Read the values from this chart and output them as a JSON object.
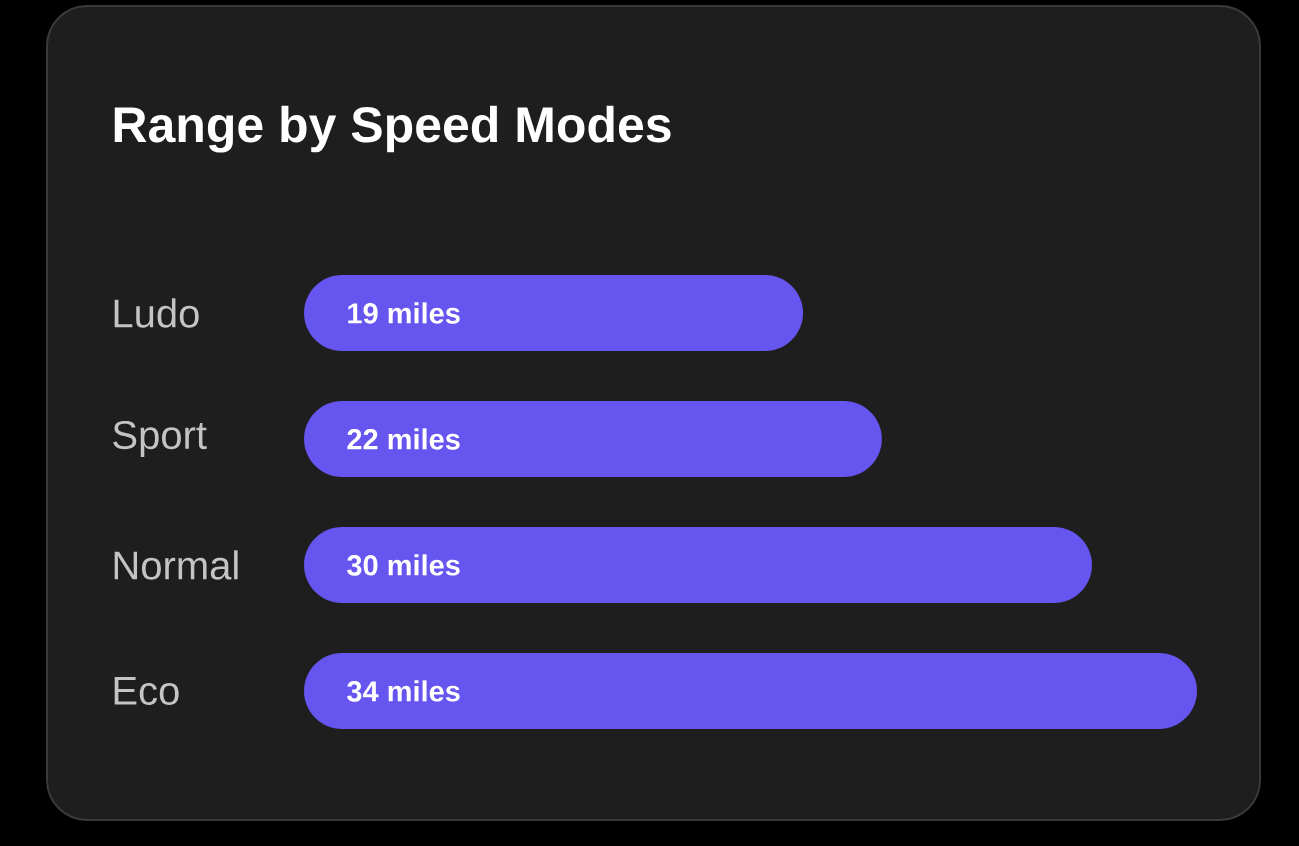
{
  "chart_data": {
    "type": "bar",
    "orientation": "horizontal",
    "title": "Range by Speed Modes",
    "categories": [
      "Ludo",
      "Sport",
      "Normal",
      "Eco"
    ],
    "values": [
      19,
      22,
      30,
      34
    ],
    "value_labels": [
      "19 miles",
      "22 miles",
      "30 miles",
      "34 miles"
    ],
    "color": "#6655ee"
  }
}
